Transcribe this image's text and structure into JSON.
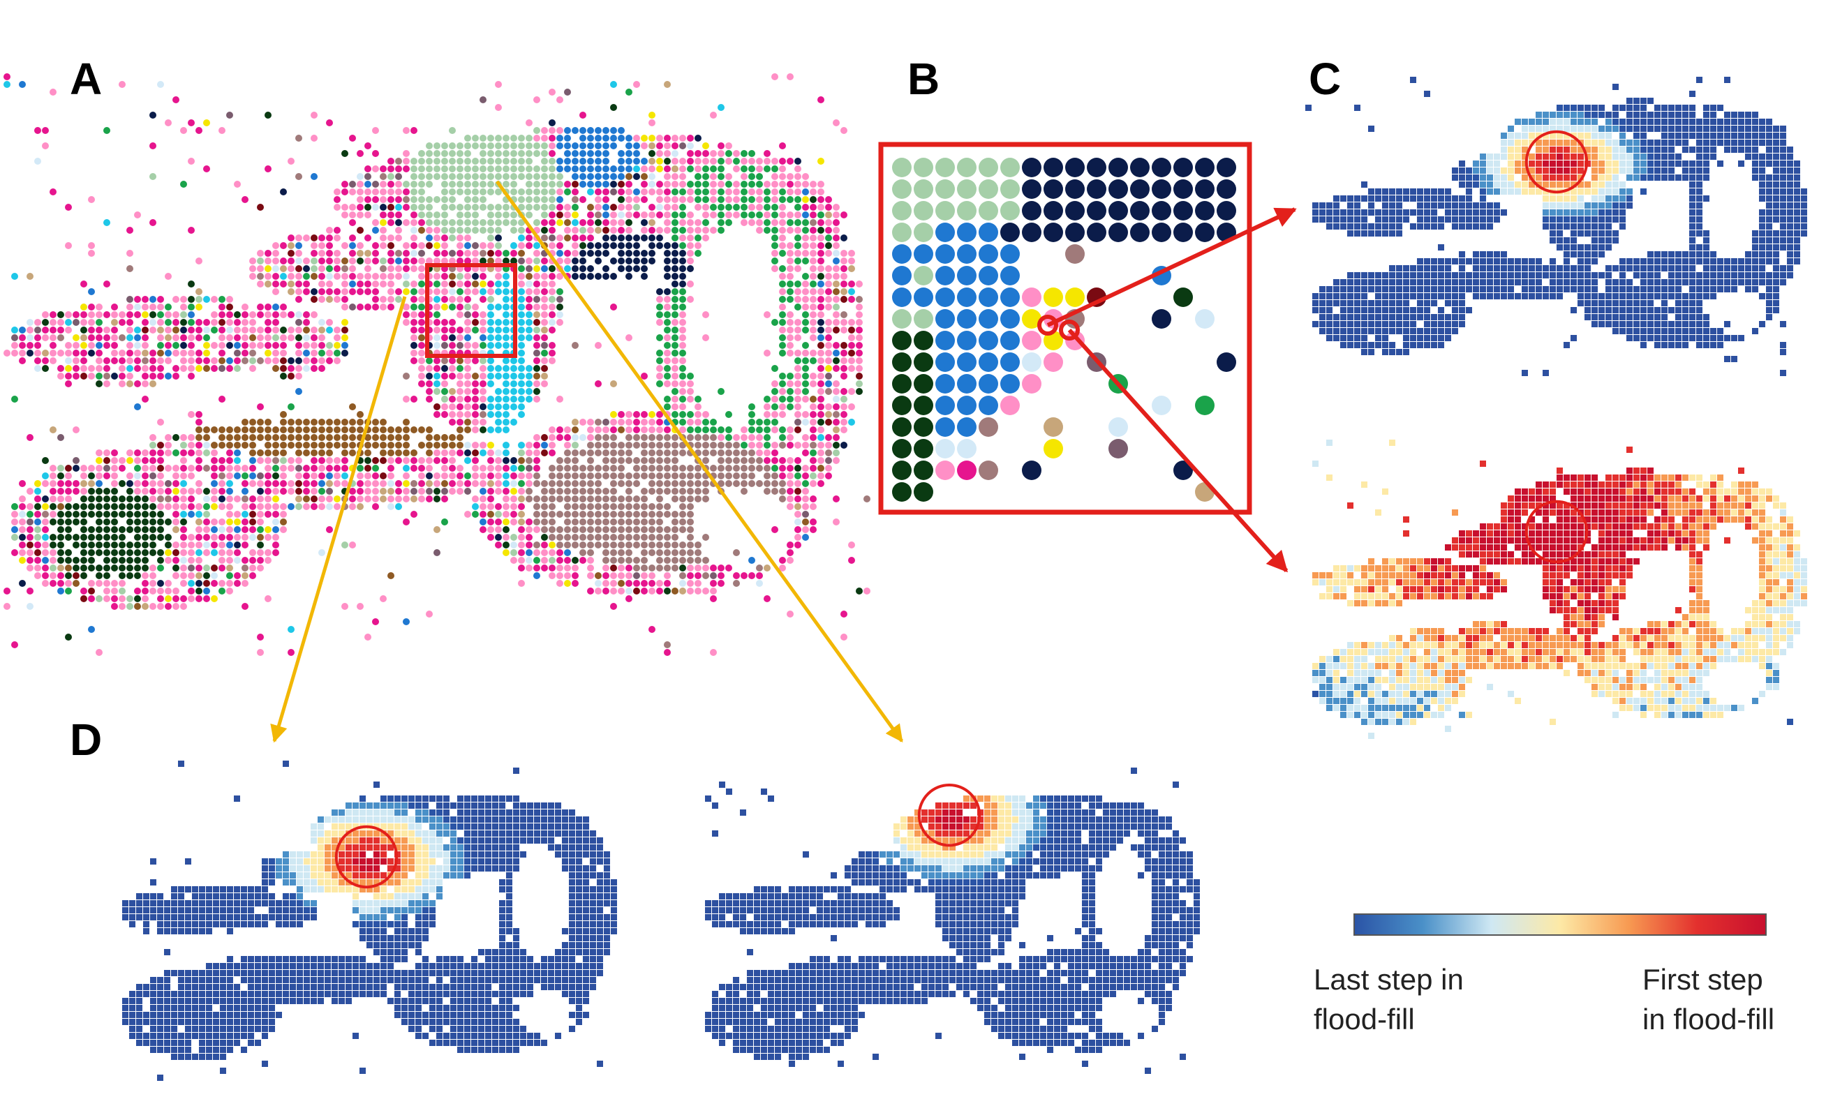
{
  "panels": {
    "a": {
      "label": "A"
    },
    "b": {
      "label": "B"
    },
    "c": {
      "label": "C"
    },
    "d": {
      "label": "D"
    }
  },
  "legend": {
    "low_label_line1": "Last step in",
    "low_label_line2": "flood-fill",
    "high_label_line1": "First step",
    "high_label_line2": "in flood-fill",
    "gradient_colors": [
      "#2b54a6",
      "#4a90c8",
      "#cfe8f3",
      "#fde9a6",
      "#f79a52",
      "#e3302e",
      "#c8102e"
    ]
  },
  "colors": {
    "highlight": "#e3201b",
    "pointer": "#f2b705",
    "fill_blue": "#2d50a0"
  },
  "cluster_palette": [
    "#a5cfa8",
    "#0b1c4a",
    "#1f78d1",
    "#ff8fc6",
    "#e6158e",
    "#8f5a24",
    "#a07a7a",
    "#0a3a12",
    "#1aa34a",
    "#1ec7e8",
    "#f5e600",
    "#7a0a12",
    "#d3e9f7",
    "#7a5c6e",
    "#c7a67a"
  ]
}
